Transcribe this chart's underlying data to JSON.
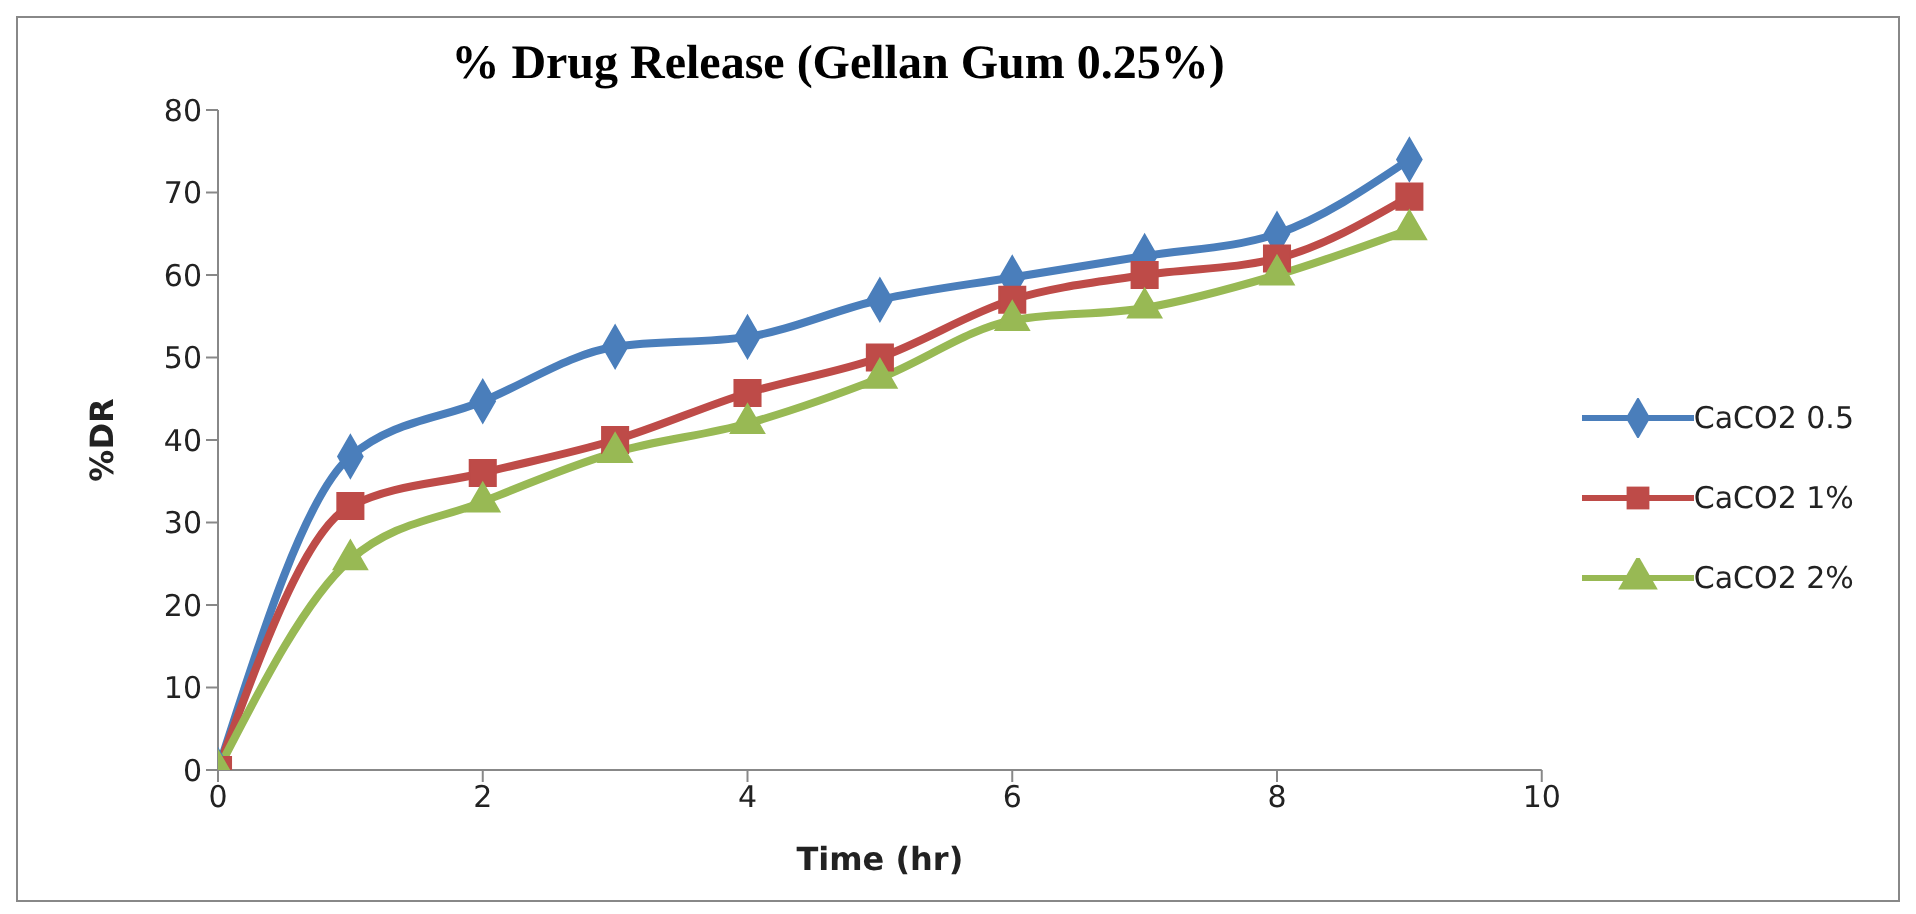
{
  "chart_data": {
    "type": "line",
    "title": "% Drug Release (Gellan Gum 0.25%)",
    "xlabel": "Time (hr)",
    "ylabel": "%DR",
    "x": [
      0,
      1,
      2,
      3,
      4,
      5,
      6,
      7,
      8,
      9
    ],
    "series": [
      {
        "name": "CaCO2 0.5",
        "color": "#4a7ebb",
        "marker": "diamond",
        "values": [
          0,
          38,
          44.7,
          51.3,
          52.5,
          57,
          59.7,
          62.3,
          65,
          74
        ]
      },
      {
        "name": "CaCO2 1%",
        "color": "#be4b48",
        "marker": "square",
        "values": [
          0,
          32,
          36,
          40,
          45.7,
          50,
          57,
          60,
          62,
          69.5
        ]
      },
      {
        "name": "CaCO2 2%",
        "color": "#98b954",
        "marker": "triangle",
        "values": [
          0,
          25.5,
          32.5,
          38.5,
          42,
          47.5,
          54.5,
          56,
          60,
          65.5
        ]
      }
    ],
    "xlim": [
      0,
      10
    ],
    "xticks": [
      0,
      2,
      4,
      6,
      8,
      10
    ],
    "ylim": [
      0,
      80
    ],
    "yticks": [
      0,
      10,
      20,
      30,
      40,
      50,
      60,
      70,
      80
    ],
    "grid": false,
    "legend": "right",
    "line_style": "solid"
  }
}
